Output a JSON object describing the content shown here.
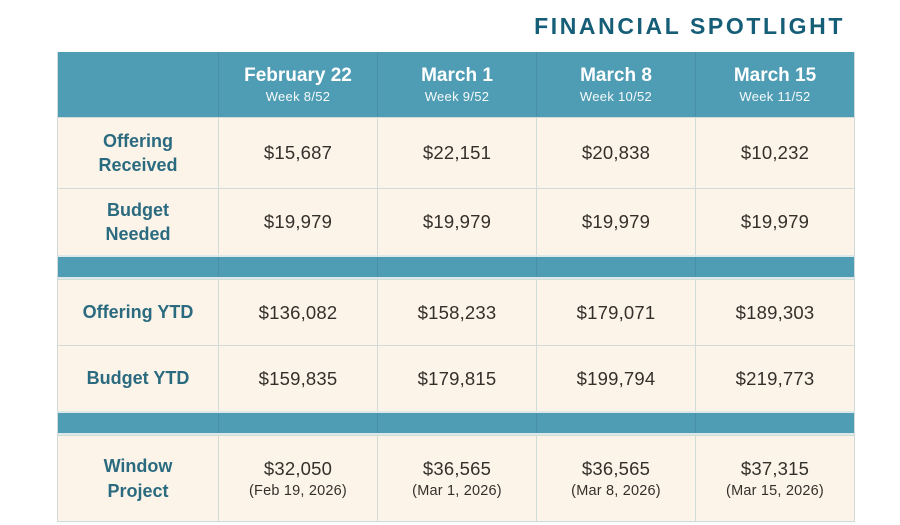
{
  "title": "FINANCIAL SPOTLIGHT",
  "colors": {
    "teal": "#4f9db4",
    "title_teal": "#165d78",
    "label_teal": "#2b6b80",
    "cream": "#fdf4e9",
    "value_ink": "#33302b",
    "grid_border": "#d3dbd6"
  },
  "chart_data": {
    "type": "table",
    "title": "FINANCIAL SPOTLIGHT",
    "columns": [
      {
        "date": "February 22",
        "week": "Week 8/52"
      },
      {
        "date": "March 1",
        "week": "Week 9/52"
      },
      {
        "date": "March 8",
        "week": "Week 10/52"
      },
      {
        "date": "March 15",
        "week": "Week 11/52"
      }
    ],
    "rows": [
      {
        "label": "Offering Received",
        "values": [
          "$15,687",
          "$22,151",
          "$20,838",
          "$10,232"
        ]
      },
      {
        "label": "Budget Needed",
        "values": [
          "$19,979",
          "$19,979",
          "$19,979",
          "$19,979"
        ]
      },
      {
        "label": "Offering YTD",
        "values": [
          "$136,082",
          "$158,233",
          "$179,071",
          "$189,303"
        ]
      },
      {
        "label": "Budget YTD",
        "values": [
          "$159,835",
          "$179,815",
          "$199,794",
          "$219,773"
        ]
      },
      {
        "label": "Window Project",
        "values": [
          "$32,050",
          "$36,565",
          "$36,565",
          "$37,315"
        ],
        "subvalues": [
          "(Feb 19, 2026)",
          "(Mar 1, 2026)",
          "(Mar 8, 2026)",
          "(Mar 15, 2026)"
        ]
      }
    ]
  }
}
